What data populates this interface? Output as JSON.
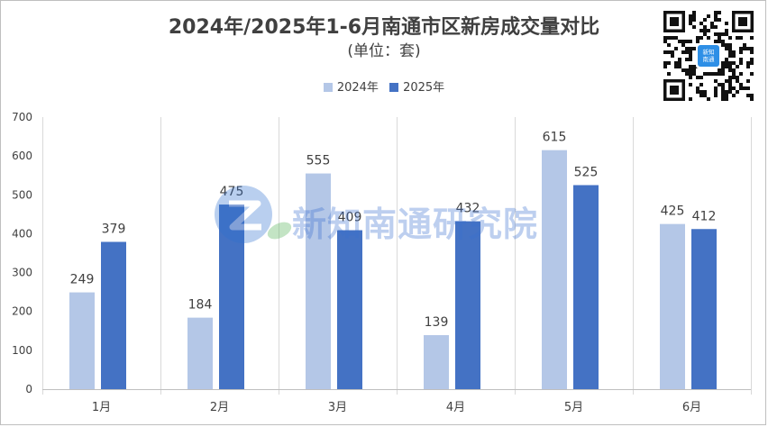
{
  "title": "2024年/2025年1-6月南通市区新房成交量对比",
  "subtitle": "(单位：套)",
  "watermark": "新知南通研究院",
  "qr_caption": "新知\n南通",
  "colors": {
    "series_2024": "#b4c7e7",
    "series_2025": "#4472c4",
    "grid": "#d9d9d9",
    "text": "#404040"
  },
  "chart_data": {
    "type": "bar",
    "categories": [
      "1月",
      "2月",
      "3月",
      "4月",
      "5月",
      "6月"
    ],
    "series": [
      {
        "name": "2024年",
        "values": [
          249,
          184,
          555,
          139,
          615,
          425
        ]
      },
      {
        "name": "2025年",
        "values": [
          379,
          475,
          409,
          432,
          525,
          412
        ]
      }
    ],
    "ylim": [
      0,
      700
    ],
    "yticks": [
      0,
      100,
      200,
      300,
      400,
      500,
      600,
      700
    ],
    "grid": true,
    "legend": "top-center"
  }
}
